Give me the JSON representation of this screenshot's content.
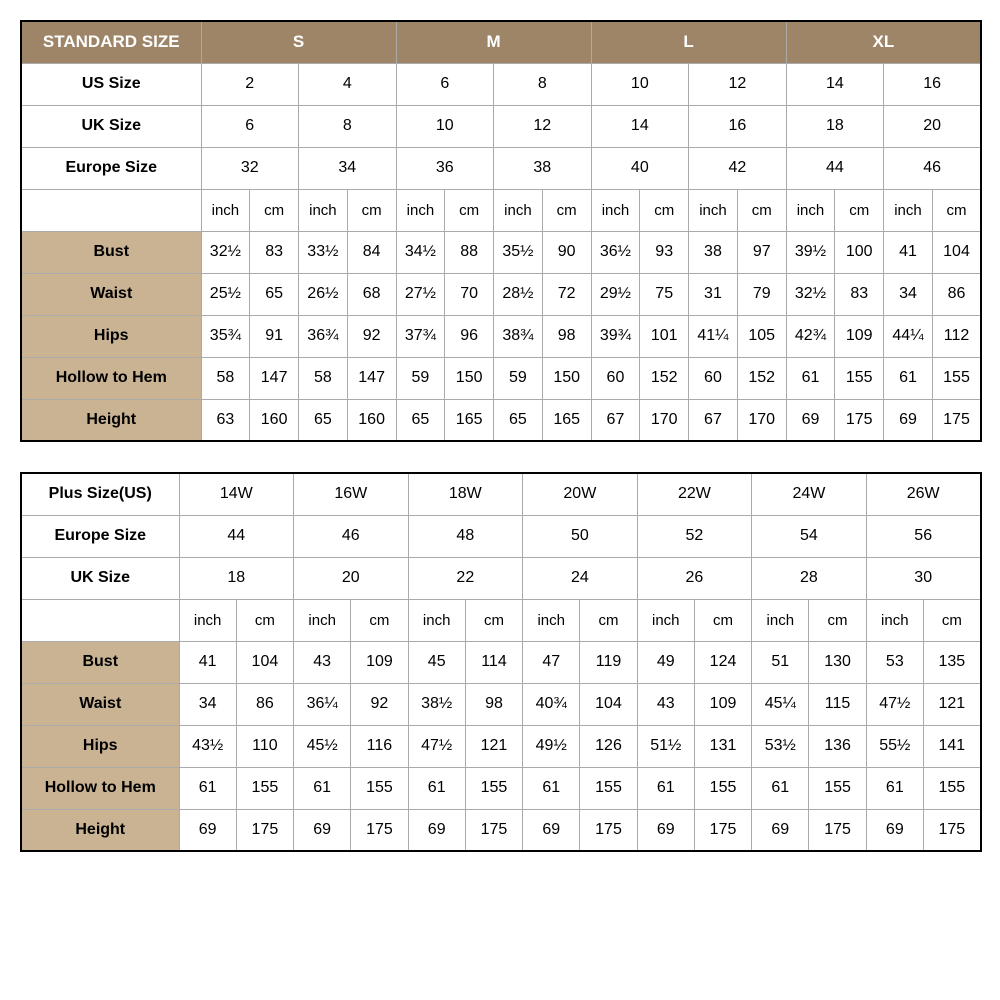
{
  "colors": {
    "header_bg": "#9e8568",
    "header_fg": "#ffffff",
    "measure_label_bg": "#cab393",
    "border": "#aaaaaa",
    "outer_border": "#000000",
    "background": "#ffffff"
  },
  "standard": {
    "title": "STANDARD SIZE",
    "size_groups": [
      "S",
      "M",
      "L",
      "XL"
    ],
    "label_us": "US Size",
    "label_uk": "UK Size",
    "label_eu": "Europe Size",
    "us": [
      "2",
      "4",
      "6",
      "8",
      "10",
      "12",
      "14",
      "16"
    ],
    "uk": [
      "6",
      "8",
      "10",
      "12",
      "14",
      "16",
      "18",
      "20"
    ],
    "eu": [
      "32",
      "34",
      "36",
      "38",
      "40",
      "42",
      "44",
      "46"
    ],
    "unit_inch": "inch",
    "unit_cm": "cm",
    "measures": [
      {
        "label": "Bust",
        "values": [
          "32½",
          "83",
          "33½",
          "84",
          "34½",
          "88",
          "35½",
          "90",
          "36½",
          "93",
          "38",
          "97",
          "39½",
          "100",
          "41",
          "104"
        ]
      },
      {
        "label": "Waist",
        "values": [
          "25½",
          "65",
          "26½",
          "68",
          "27½",
          "70",
          "28½",
          "72",
          "29½",
          "75",
          "31",
          "79",
          "32½",
          "83",
          "34",
          "86"
        ]
      },
      {
        "label": "Hips",
        "values": [
          "35¾",
          "91",
          "36¾",
          "92",
          "37¾",
          "96",
          "38¾",
          "98",
          "39¾",
          "101",
          "41¼",
          "105",
          "42¾",
          "109",
          "44¼",
          "112"
        ]
      },
      {
        "label": "Hollow to Hem",
        "values": [
          "58",
          "147",
          "58",
          "147",
          "59",
          "150",
          "59",
          "150",
          "60",
          "152",
          "60",
          "152",
          "61",
          "155",
          "61",
          "155"
        ]
      },
      {
        "label": "Height",
        "values": [
          "63",
          "160",
          "65",
          "160",
          "65",
          "165",
          "65",
          "165",
          "67",
          "170",
          "67",
          "170",
          "69",
          "175",
          "69",
          "175"
        ]
      }
    ]
  },
  "plus": {
    "label_us": "Plus Size(US)",
    "label_eu": "Europe Size",
    "label_uk": "UK Size",
    "us": [
      "14W",
      "16W",
      "18W",
      "20W",
      "22W",
      "24W",
      "26W"
    ],
    "eu": [
      "44",
      "46",
      "48",
      "50",
      "52",
      "54",
      "56"
    ],
    "uk": [
      "18",
      "20",
      "22",
      "24",
      "26",
      "28",
      "30"
    ],
    "unit_inch": "inch",
    "unit_cm": "cm",
    "measures": [
      {
        "label": "Bust",
        "values": [
          "41",
          "104",
          "43",
          "109",
          "45",
          "114",
          "47",
          "119",
          "49",
          "124",
          "51",
          "130",
          "53",
          "135"
        ]
      },
      {
        "label": "Waist",
        "values": [
          "34",
          "86",
          "36¼",
          "92",
          "38½",
          "98",
          "40¾",
          "104",
          "43",
          "109",
          "45¼",
          "115",
          "47½",
          "121"
        ]
      },
      {
        "label": "Hips",
        "values": [
          "43½",
          "110",
          "45½",
          "116",
          "47½",
          "121",
          "49½",
          "126",
          "51½",
          "131",
          "53½",
          "136",
          "55½",
          "141"
        ]
      },
      {
        "label": "Hollow to Hem",
        "values": [
          "61",
          "155",
          "61",
          "155",
          "61",
          "155",
          "61",
          "155",
          "61",
          "155",
          "61",
          "155",
          "61",
          "155"
        ]
      },
      {
        "label": "Height",
        "values": [
          "69",
          "175",
          "69",
          "175",
          "69",
          "175",
          "69",
          "175",
          "69",
          "175",
          "69",
          "175",
          "69",
          "175"
        ]
      }
    ]
  }
}
